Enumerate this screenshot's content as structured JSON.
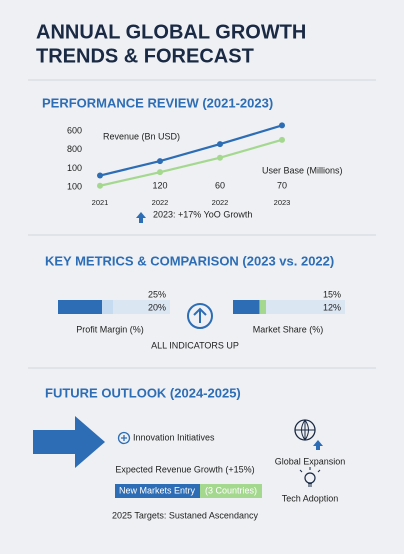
{
  "header": {
    "title_lines": [
      "ANNUAL GLOBAL GROWTH",
      "TRENDS & FORECAST"
    ]
  },
  "performance": {
    "heading": "PERFORMANCE REVIEW (2021-2023)",
    "chart": {
      "type": "line",
      "categories": [
        "2021",
        "2022",
        "2022",
        "2023"
      ],
      "y_labels": [
        "600",
        "800",
        "100",
        "100"
      ],
      "ylim": [
        100,
        500
      ],
      "series": [
        {
          "name": "Revenue (Bn USD)",
          "color": "#2d6db5",
          "values": [
            185,
            270,
            370,
            480
          ]
        },
        {
          "name": "User Base (Millions)",
          "color": "#a5d88f",
          "values": [
            125,
            205,
            290,
            395
          ]
        }
      ],
      "point_labels": [
        "120",
        "60",
        "70"
      ]
    },
    "note": "2023: +17% YoO Growth"
  },
  "metrics": {
    "heading": "KEY METRICS & COMPARISON (2023 vs. 2022)",
    "items": [
      {
        "name": "Profit Margin (%)",
        "values": [
          25,
          20
        ],
        "value_labels": [
          "25%",
          "20%"
        ],
        "color": "#2d6db5",
        "accent": "#c6daf0"
      },
      {
        "name": "Market Share (%)",
        "values": [
          15,
          12
        ],
        "value_labels": [
          "15%",
          "12%"
        ],
        "color": "#2d6db5",
        "accent": "#a5d88f"
      }
    ],
    "center_label": "ALL INDICATORS UP"
  },
  "outlook": {
    "heading": "FUTURE OUTLOOK (2024-2025)",
    "initiative": "Innovation Initiatives",
    "growth": "Expected Revenue Growth (+15%)",
    "bar_left": "New Markets Entry",
    "bar_right": "(3 Countries)",
    "targets": "2025 Targets: Sustaned Ascendancy",
    "side": [
      "Global Expansion",
      "Tech Adoption"
    ]
  }
}
